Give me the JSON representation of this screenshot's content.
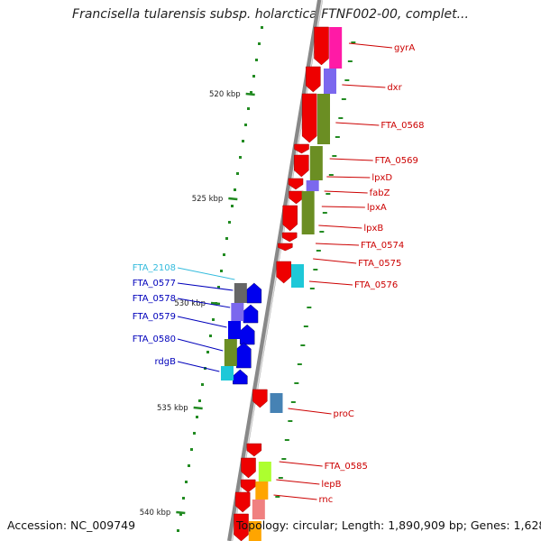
{
  "title": "Francisella tularensis subsp. holarctica FTNF002-00, complet...",
  "footer": {
    "accession": "Accession: NC_009749",
    "topology": "Topology: circular; Length: 1,890,909 bp; Genes: 1,628"
  },
  "scale_labels": [
    "520 kbp",
    "525 kbp",
    "530 kbp",
    "535 kbp",
    "540 kbp"
  ],
  "right_genes": [
    {
      "name": "gyrA",
      "color": "#cc0000"
    },
    {
      "name": "dxr",
      "color": "#cc0000"
    },
    {
      "name": "FTA_0568",
      "color": "#cc0000"
    },
    {
      "name": "FTA_0569",
      "color": "#cc0000"
    },
    {
      "name": "lpxD",
      "color": "#cc0000"
    },
    {
      "name": "fabZ",
      "color": "#cc0000"
    },
    {
      "name": "lpxA",
      "color": "#cc0000"
    },
    {
      "name": "lpxB",
      "color": "#cc0000"
    },
    {
      "name": "FTA_0574",
      "color": "#cc0000"
    },
    {
      "name": "FTA_0575",
      "color": "#cc0000"
    },
    {
      "name": "FTA_0576",
      "color": "#cc0000"
    },
    {
      "name": "proC",
      "color": "#cc0000"
    },
    {
      "name": "FTA_0585",
      "color": "#cc0000"
    },
    {
      "name": "lepB",
      "color": "#cc0000"
    },
    {
      "name": "rnc",
      "color": "#cc0000"
    }
  ],
  "left_genes": [
    {
      "name": "FTA_2108",
      "color": "#33bbdd"
    },
    {
      "name": "FTA_0577",
      "color": "#0000bb"
    },
    {
      "name": "FTA_0578",
      "color": "#0000bb"
    },
    {
      "name": "FTA_0579",
      "color": "#0000bb"
    },
    {
      "name": "FTA_0580",
      "color": "#0000bb"
    },
    {
      "name": "rdgB",
      "color": "#0000bb"
    }
  ],
  "colors": {
    "forward_strand": "#ee0000",
    "reverse_strand": "#0000ee",
    "backbone": "#888888",
    "scale_ticks": "#228b22",
    "cog_magenta": "#ff1aa6",
    "cog_purple": "#7b68ee",
    "cog_olive": "#6b8e23",
    "cog_cyan": "#1ec8d8",
    "cog_steelblue": "#4682b4",
    "cog_lime": "#adff2f",
    "cog_orange": "#ffa500",
    "cog_salmon": "#f08080",
    "cog_gray": "#666666"
  }
}
